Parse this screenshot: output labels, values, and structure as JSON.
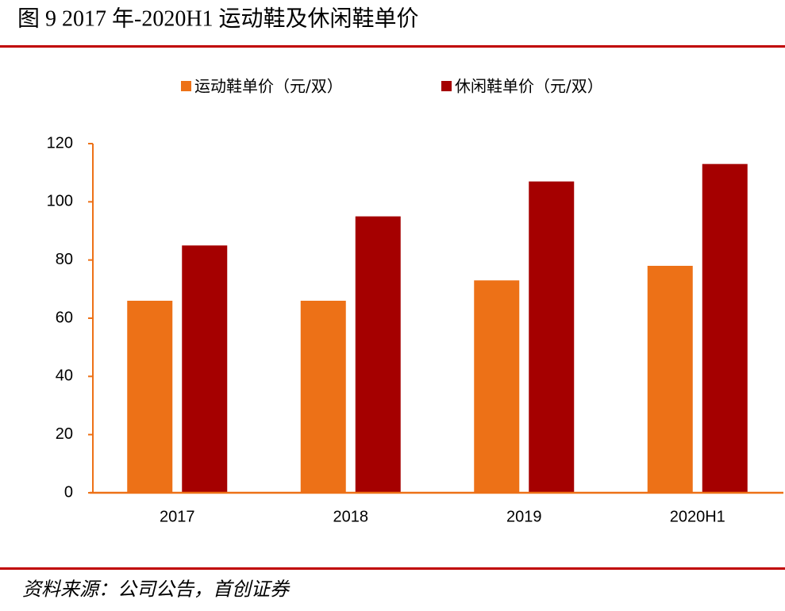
{
  "chart_data": {
    "type": "bar",
    "title": "图 9 2017 年-2020H1 运动鞋及休闲鞋单价",
    "source": "资料来源：公司公告，首创证券",
    "categories": [
      "2017",
      "2018",
      "2019",
      "2020H1"
    ],
    "series": [
      {
        "name": "运动鞋单价（元/双）",
        "color": "#ed7117",
        "values": [
          66,
          66,
          73,
          78
        ]
      },
      {
        "name": "休闲鞋单价（元/双）",
        "color": "#a50000",
        "values": [
          85,
          95,
          107,
          113
        ]
      }
    ],
    "ylim": [
      0,
      120
    ],
    "yticks": [
      0,
      20,
      40,
      60,
      80,
      100,
      120
    ],
    "axis_color": "#ed7117",
    "rule_color": "#c00000"
  }
}
